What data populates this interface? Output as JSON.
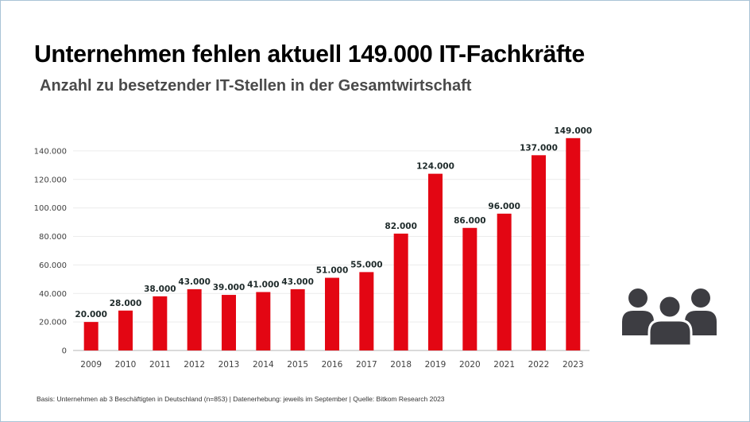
{
  "header": {
    "title": "Unternehmen fehlen aktuell 149.000 IT-Fachkräfte",
    "subtitle": "Anzahl zu besetzender IT-Stellen in der Gesamtwirtschaft"
  },
  "footnote": "Basis: Unternehmen ab 3 Beschäftigten in Deutschland (n=853) | Datenerhebung: jeweils im September | Quelle: Bitkom Research 2023",
  "icon": "people-group-icon",
  "colors": {
    "bar": "#e30613",
    "icon": "#3d3d42",
    "label": "#1e2a2a"
  },
  "chart_data": {
    "type": "bar",
    "title": "Anzahl zu besetzender IT-Stellen in der Gesamtwirtschaft",
    "xlabel": "",
    "ylabel": "",
    "categories": [
      "2009",
      "2010",
      "2011",
      "2012",
      "2013",
      "2014",
      "2015",
      "2016",
      "2017",
      "2018",
      "2019",
      "2020",
      "2021",
      "2022",
      "2023"
    ],
    "values": [
      20000,
      28000,
      38000,
      43000,
      39000,
      41000,
      43000,
      51000,
      55000,
      82000,
      124000,
      86000,
      96000,
      137000,
      149000
    ],
    "data_labels": [
      "20.000",
      "28.000",
      "38.000",
      "43.000",
      "39.000",
      "41.000",
      "43.000",
      "51.000",
      "55.000",
      "82.000",
      "124.000",
      "86.000",
      "96.000",
      "137.000",
      "149.000"
    ],
    "yticks": [
      0,
      20000,
      40000,
      60000,
      80000,
      100000,
      120000,
      140000
    ],
    "ytick_labels": [
      "0",
      "20.000",
      "40.000",
      "60.000",
      "80.000",
      "100.000",
      "120.000",
      "140.000"
    ],
    "ylim": [
      0,
      150000
    ],
    "grid": true,
    "legend": "none"
  }
}
